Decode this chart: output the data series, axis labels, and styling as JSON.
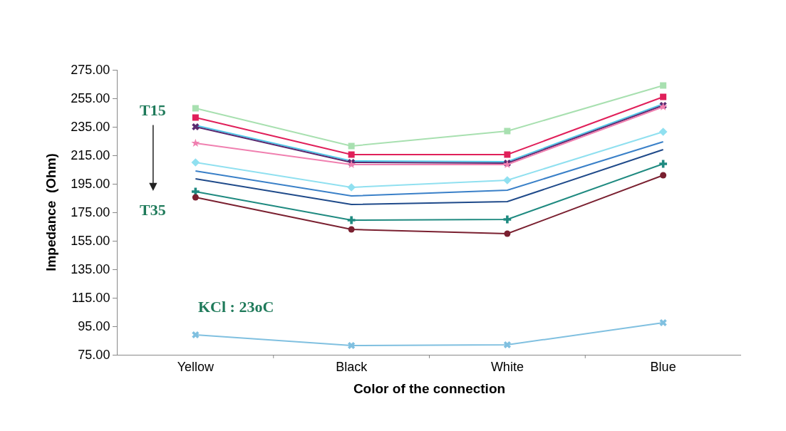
{
  "chart_data": {
    "type": "line",
    "xlabel": "Color of the connection",
    "ylabel": "Impedance  (Ohm)",
    "categories": [
      "Yellow",
      "Black",
      "White",
      "Blue"
    ],
    "ylim": [
      75,
      275
    ],
    "yticks": [
      {
        "value": 75,
        "label": "75.00"
      },
      {
        "value": 95,
        "label": "95.00"
      },
      {
        "value": 115,
        "label": "115.00"
      },
      {
        "value": 135,
        "label": "135.00"
      },
      {
        "value": 155,
        "label": "155.00"
      },
      {
        "value": 175,
        "label": "175.00"
      },
      {
        "value": 195,
        "label": "195.00"
      },
      {
        "value": 215,
        "label": "215.00"
      },
      {
        "value": 235,
        "label": "235.00"
      },
      {
        "value": 255,
        "label": "255.00"
      },
      {
        "value": 275,
        "label": "275.00"
      }
    ],
    "annotations": [
      "T15",
      "T35",
      "KCl : 23oC"
    ],
    "series": [
      {
        "color": "#a8e0b0",
        "marker": "square",
        "values": [
          248,
          221.5,
          232,
          264
        ]
      },
      {
        "color": "#e0205a",
        "marker": "square",
        "values": [
          241.5,
          215.5,
          215.5,
          256
        ]
      },
      {
        "color": "#50c8e8",
        "marker": "none",
        "values": [
          236,
          211,
          210.5,
          251
        ]
      },
      {
        "color": "#5a2a70",
        "marker": "cross",
        "values": [
          235,
          210,
          209.5,
          250
        ]
      },
      {
        "color": "#f080b0",
        "marker": "star",
        "values": [
          223.5,
          208.5,
          208.5,
          249
        ]
      },
      {
        "color": "#90e0f0",
        "marker": "diamond",
        "values": [
          210,
          192.5,
          197.5,
          231.5
        ]
      },
      {
        "color": "#3a80c8",
        "marker": "none",
        "values": [
          204,
          186.5,
          190.5,
          224.5
        ]
      },
      {
        "color": "#1f4a8a",
        "marker": "none",
        "values": [
          198.5,
          180.5,
          182.5,
          219
        ]
      },
      {
        "color": "#1f8a80",
        "marker": "plus",
        "values": [
          189.5,
          169.5,
          170,
          209
        ]
      },
      {
        "color": "#7a2030",
        "marker": "circle",
        "values": [
          185.5,
          163,
          160,
          201
        ]
      },
      {
        "color": "#80c0e0",
        "marker": "cross",
        "values": [
          89,
          81.5,
          82,
          97.5
        ]
      }
    ]
  }
}
